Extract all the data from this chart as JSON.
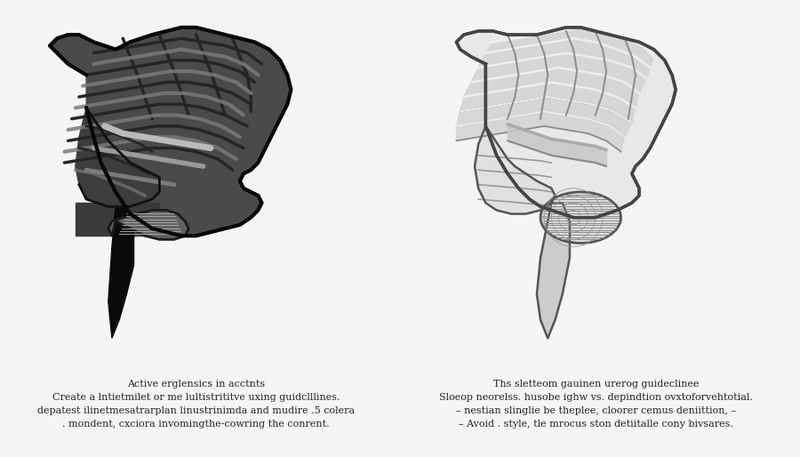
{
  "background_color": "#f5f5f5",
  "left_label_lines": [
    "Active erglensics in acctnts",
    "Create a lntietmilet or me lultistrititve uxing guidclllines.",
    "depatest ilinetmesatrarplan linustrinimda and mudire .5 colera",
    ". mondent, cxciora invomingthe-cowring the conrent."
  ],
  "right_label_lines": [
    "Ths sletteom gauinen urerog guideclinee",
    "Sloeop neorelss. husobe ighw vs. depindtion ovxtoforvehtotial.",
    "– nestian slinglie be theplee, cloorer cemus deniittion, –",
    "– Avoid . style, tle mrocus ston detiitalle cony bivsares."
  ],
  "text_color": "#222222",
  "font_size": 8.0
}
